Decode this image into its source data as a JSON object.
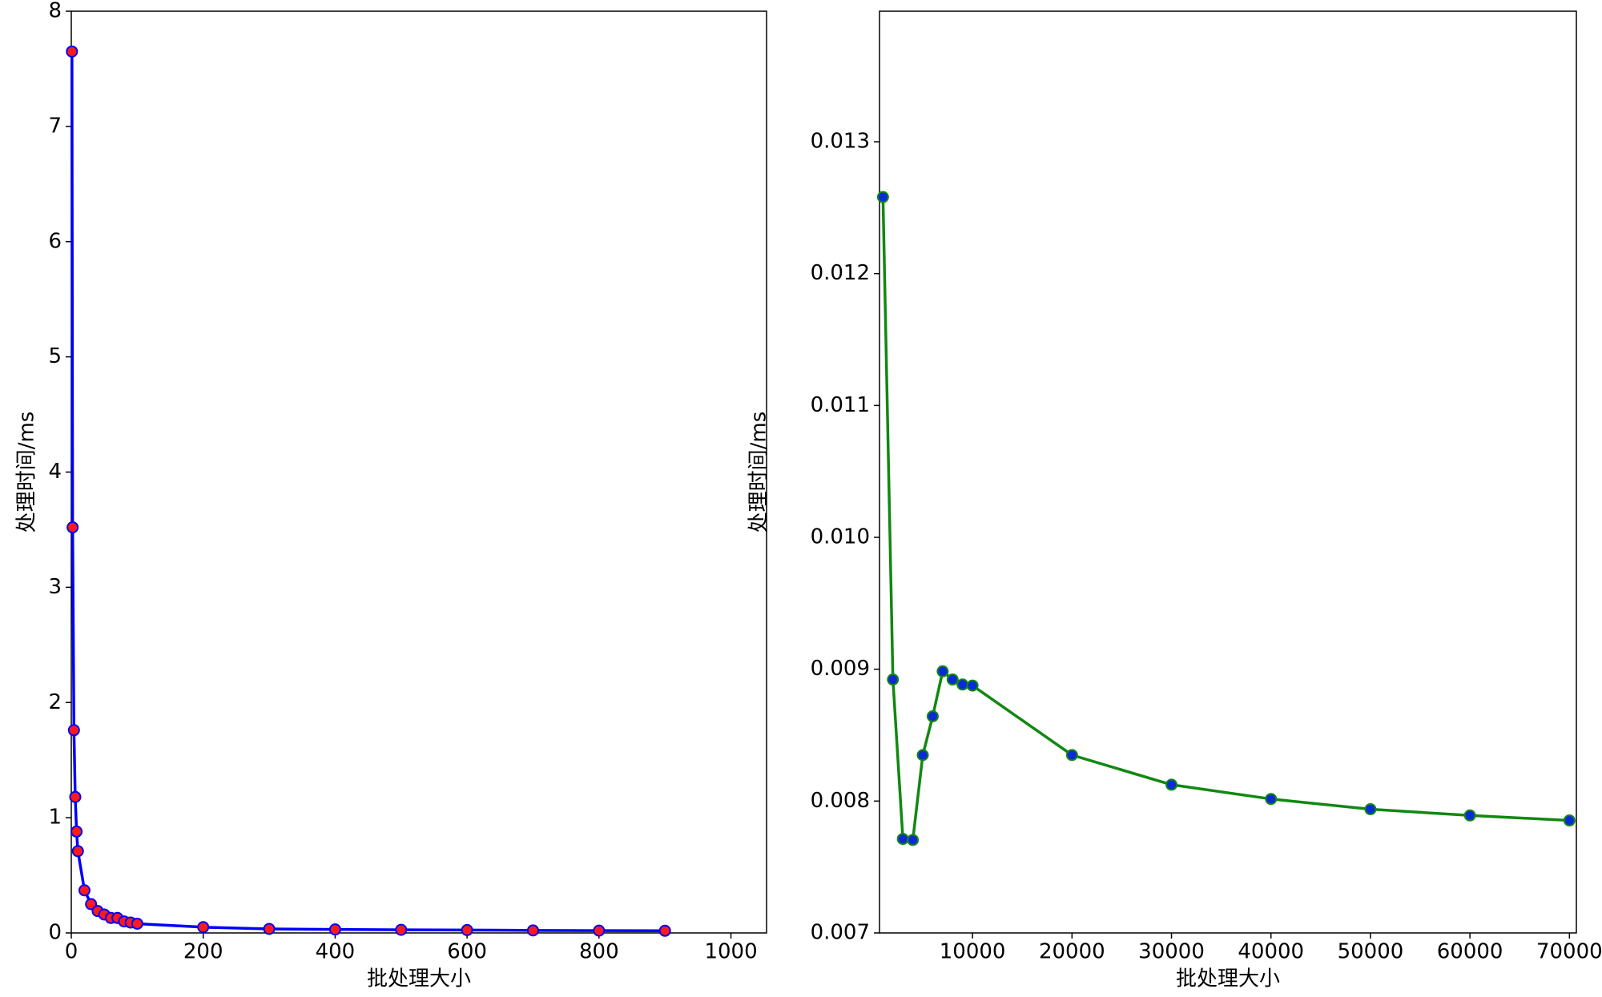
{
  "chart_data": [
    {
      "type": "line",
      "xlabel": "批处理大小",
      "ylabel": "处理时间/ms",
      "x": [
        1,
        2,
        4,
        6,
        8,
        10,
        20,
        30,
        40,
        50,
        60,
        70,
        80,
        90,
        100,
        200,
        300,
        400,
        500,
        600,
        700,
        800,
        900
      ],
      "series": [
        {
          "color": "#0000ff",
          "marker_color": "#ff1a1a",
          "values": [
            7.65,
            3.52,
            1.76,
            1.18,
            0.88,
            0.71,
            0.37,
            0.25,
            0.19,
            0.16,
            0.13,
            0.13,
            0.1,
            0.09,
            0.08,
            0.05,
            0.035,
            0.03,
            0.027,
            0.025,
            0.022,
            0.02,
            0.019
          ]
        }
      ],
      "xlim": [
        0,
        1054
      ],
      "xticks": [
        0,
        200,
        400,
        600,
        800,
        1000
      ],
      "ylim": [
        0,
        8
      ],
      "yticks": [
        0,
        1,
        2,
        3,
        4,
        5,
        6,
        7,
        8
      ]
    },
    {
      "type": "line",
      "xlabel": "批处理大小",
      "ylabel": "处理时间/ms",
      "x": [
        1000,
        2000,
        3000,
        4000,
        5000,
        6000,
        7000,
        8000,
        9000,
        10000,
        20000,
        30000,
        40000,
        50000,
        60000,
        70000
      ],
      "series": [
        {
          "color": "#118811",
          "marker_color": "#0a2ad8",
          "values": [
            0.012581,
            0.008922,
            0.007713,
            0.007705,
            0.008349,
            0.008643,
            0.008984,
            0.008922,
            0.008884,
            0.008876,
            0.008349,
            0.008124,
            0.008016,
            0.007938,
            0.007891,
            0.007853
          ]
        }
      ],
      "xlim": [
        650,
        70698
      ],
      "xticks": [
        10000,
        20000,
        30000,
        40000,
        50000,
        60000,
        70000
      ],
      "ylim": [
        0.007,
        0.01399
      ],
      "yticks": [
        0.007,
        0.008,
        0.009,
        {
          "value": 0.01,
          "label": "0.010"
        },
        0.011,
        0.012,
        0.013
      ]
    }
  ]
}
